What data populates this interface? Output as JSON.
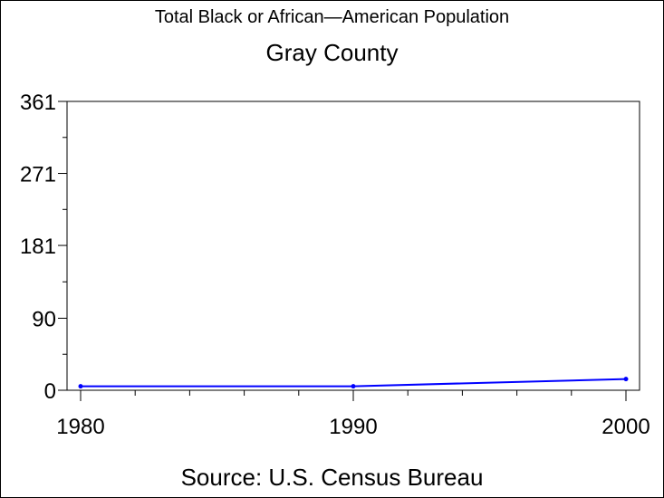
{
  "chart_data": {
    "type": "line",
    "title": "Total Black or African—American Population",
    "subtitle": "Gray County",
    "source": "Source: U.S. Census Bureau",
    "xlabel": "",
    "ylabel": "",
    "x": [
      1980,
      1990,
      2000
    ],
    "series": [
      {
        "values": [
          5,
          5,
          14
        ]
      }
    ],
    "xlim": [
      1980,
      2000
    ],
    "ylim": [
      0,
      361
    ],
    "yticks": [
      0,
      90,
      181,
      271,
      361
    ],
    "xticks": [
      1980,
      1990,
      2000
    ],
    "grid": false,
    "line_color": "#0000ff"
  }
}
